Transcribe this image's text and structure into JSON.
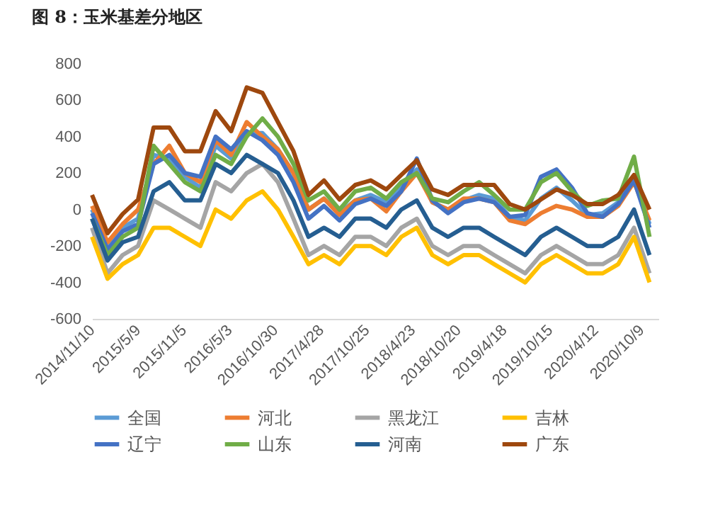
{
  "chart_data": {
    "type": "line",
    "title": "图 8：玉米基差分地区",
    "x": [
      "2014-11-10",
      "2015-01-10",
      "2015-03-10",
      "2015-05-10",
      "2015-07-10",
      "2015-09-10",
      "2015-11-10",
      "2016-01-10",
      "2016-03-10",
      "2016-05-10",
      "2016-07-10",
      "2016-09-10",
      "2016-11-10",
      "2017-01-10",
      "2017-03-10",
      "2017-05-10",
      "2017-07-10",
      "2017-09-10",
      "2017-11-10",
      "2018-01-10",
      "2018-03-10",
      "2018-05-10",
      "2018-07-10",
      "2018-09-10",
      "2018-11-10",
      "2019-01-10",
      "2019-03-10",
      "2019-05-10",
      "2019-07-10",
      "2019-09-10",
      "2019-11-10",
      "2020-01-10",
      "2020-03-10",
      "2020-05-10",
      "2020-07-10",
      "2020-09-10",
      "2020-11-10"
    ],
    "series": [
      {
        "name": "全国",
        "color": "#5b9bd5",
        "values": [
          0,
          -200,
          -100,
          -50,
          300,
          280,
          180,
          120,
          350,
          280,
          420,
          420,
          330,
          200,
          0,
          60,
          -20,
          50,
          80,
          40,
          120,
          220,
          40,
          0,
          50,
          80,
          60,
          -40,
          -60,
          60,
          120,
          50,
          -30,
          -20,
          40,
          170,
          -80
        ]
      },
      {
        "name": "河北",
        "color": "#ed7d31",
        "values": [
          20,
          -180,
          -80,
          0,
          250,
          350,
          200,
          150,
          380,
          300,
          480,
          400,
          330,
          200,
          0,
          60,
          -30,
          50,
          60,
          -10,
          100,
          200,
          40,
          0,
          60,
          60,
          40,
          -60,
          -80,
          -20,
          20,
          0,
          -40,
          -40,
          20,
          150,
          -60
        ]
      },
      {
        "name": "黑龙江",
        "color": "#a5a5a5",
        "values": [
          -100,
          -350,
          -250,
          -200,
          50,
          0,
          -50,
          -100,
          150,
          100,
          200,
          250,
          150,
          -50,
          -250,
          -200,
          -250,
          -150,
          -150,
          -200,
          -100,
          -50,
          -200,
          -250,
          -200,
          -200,
          -250,
          -300,
          -350,
          -250,
          -200,
          -250,
          -300,
          -300,
          -250,
          -100,
          -350
        ]
      },
      {
        "name": "吉林",
        "color": "#ffc000",
        "values": [
          -150,
          -380,
          -300,
          -250,
          -100,
          -100,
          -150,
          -200,
          0,
          -50,
          50,
          100,
          0,
          -150,
          -300,
          -250,
          -300,
          -200,
          -200,
          -250,
          -150,
          -100,
          -250,
          -300,
          -250,
          -250,
          -300,
          -350,
          -400,
          -300,
          -250,
          -300,
          -350,
          -350,
          -300,
          -150,
          -400
        ]
      },
      {
        "name": "辽宁",
        "color": "#4472c4",
        "values": [
          -20,
          -220,
          -120,
          -80,
          250,
          300,
          200,
          180,
          400,
          330,
          430,
          380,
          300,
          150,
          -50,
          20,
          -60,
          30,
          60,
          20,
          100,
          280,
          50,
          -20,
          40,
          60,
          40,
          -40,
          -30,
          180,
          220,
          120,
          -20,
          -40,
          30,
          160,
          -100
        ]
      },
      {
        "name": "山东",
        "color": "#70ad47",
        "values": [
          -50,
          -250,
          -150,
          -100,
          350,
          250,
          150,
          100,
          300,
          250,
          400,
          500,
          400,
          250,
          50,
          100,
          0,
          100,
          120,
          60,
          150,
          200,
          60,
          40,
          100,
          150,
          80,
          0,
          0,
          150,
          200,
          100,
          20,
          50,
          60,
          290,
          -150
        ]
      },
      {
        "name": "河南",
        "color": "#255e91",
        "values": [
          -50,
          -280,
          -180,
          -150,
          100,
          150,
          50,
          50,
          250,
          200,
          300,
          250,
          200,
          50,
          -150,
          -100,
          -150,
          -50,
          -50,
          -100,
          0,
          50,
          -100,
          -150,
          -100,
          -100,
          -150,
          -200,
          -250,
          -150,
          -100,
          -150,
          -200,
          -200,
          -150,
          0,
          -250
        ]
      },
      {
        "name": "广东",
        "color": "#9e480e",
        "values": [
          80,
          -130,
          -25,
          55,
          450,
          450,
          320,
          320,
          540,
          430,
          670,
          640,
          480,
          320,
          80,
          160,
          55,
          135,
          160,
          110,
          190,
          270,
          110,
          80,
          135,
          135,
          135,
          30,
          0,
          55,
          110,
          80,
          30,
          30,
          80,
          190,
          0
        ]
      }
    ],
    "xlim": [
      "2014-11-10",
      "2020-12-15"
    ],
    "xticks": [
      {
        "value": "2014-11-10",
        "label": "2014/11/10"
      },
      {
        "value": "2015-05-09",
        "label": "2015/5/9"
      },
      {
        "value": "2015-11-05",
        "label": "2015/11/5"
      },
      {
        "value": "2016-05-03",
        "label": "2016/5/3"
      },
      {
        "value": "2016-10-30",
        "label": "2016/10/30"
      },
      {
        "value": "2017-04-28",
        "label": "2017/4/28"
      },
      {
        "value": "2017-10-25",
        "label": "2017/10/25"
      },
      {
        "value": "2018-04-23",
        "label": "2018/4/23"
      },
      {
        "value": "2018-10-20",
        "label": "2018/10/20"
      },
      {
        "value": "2019-04-18",
        "label": "2019/4/18"
      },
      {
        "value": "2019-10-15",
        "label": "2019/10/15"
      },
      {
        "value": "2020-04-12",
        "label": "2020/4/12"
      },
      {
        "value": "2020-10-09",
        "label": "2020/10/9"
      }
    ],
    "ylim": [
      -600,
      800
    ],
    "yticks": [
      -600,
      -400,
      -200,
      0,
      200,
      400,
      600,
      800
    ],
    "grid": false,
    "legend": "bottom",
    "marker": "none",
    "line_style": "solid"
  }
}
